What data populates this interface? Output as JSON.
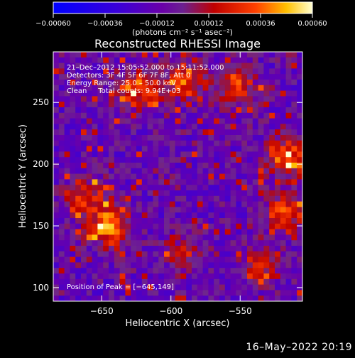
{
  "chart_data": {
    "type": "heatmap",
    "title": "Reconstructed RHESSI Image",
    "xlabel": "Heliocentric X (arcsec)",
    "ylabel": "Heliocentric Y (arcsec)",
    "xlim": [
      -685,
      -505
    ],
    "ylim": [
      89,
      291
    ],
    "x_ticks": [
      -650,
      -600,
      -550
    ],
    "x_tick_labels": [
      "−650",
      "−600",
      "−550"
    ],
    "y_ticks": [
      100,
      150,
      200,
      250
    ],
    "y_tick_labels": [
      "100",
      "150",
      "200",
      "250"
    ],
    "colorbar": {
      "min": -0.0006,
      "max": 0.0006,
      "ticks": [
        -0.0006,
        -0.00036,
        -0.00012,
        0.00012,
        0.00036,
        0.0006
      ],
      "tick_labels": [
        "−0.00060",
        "−0.00036",
        "−0.00012",
        "0.00012",
        "0.00036",
        "0.00060"
      ],
      "unit_label": "(photons cm⁻² s⁻¹ asec⁻²)"
    },
    "info_lines": [
      "21–Dec–2012 15:05:52.000 to 15:11:52.000",
      "Detectors: 3F 4F 5F 6F 7F 8F, Att 0",
      "Energy Range: 25.0 – 50.0 keV",
      "Clean     Total counts: 9.94E+03"
    ],
    "peak_label": "Position of Peak = [−645,149]",
    "peaks": [
      {
        "x": -645,
        "y": 150,
        "value": 0.0006
      },
      {
        "x": -514,
        "y": 205,
        "value": 0.00058
      },
      {
        "x": -517,
        "y": 160,
        "value": 0.00045
      },
      {
        "x": -625,
        "y": 260,
        "value": 0.0005
      },
      {
        "x": -590,
        "y": 268,
        "value": 0.00045
      },
      {
        "x": -552,
        "y": 262,
        "value": 0.0004
      },
      {
        "x": -660,
        "y": 175,
        "value": 0.00035
      },
      {
        "x": -590,
        "y": 128,
        "value": 0.0003
      },
      {
        "x": -535,
        "y": 118,
        "value": 0.0003
      }
    ]
  },
  "footer": {
    "timestamp": "16–May–2022 20:19"
  }
}
